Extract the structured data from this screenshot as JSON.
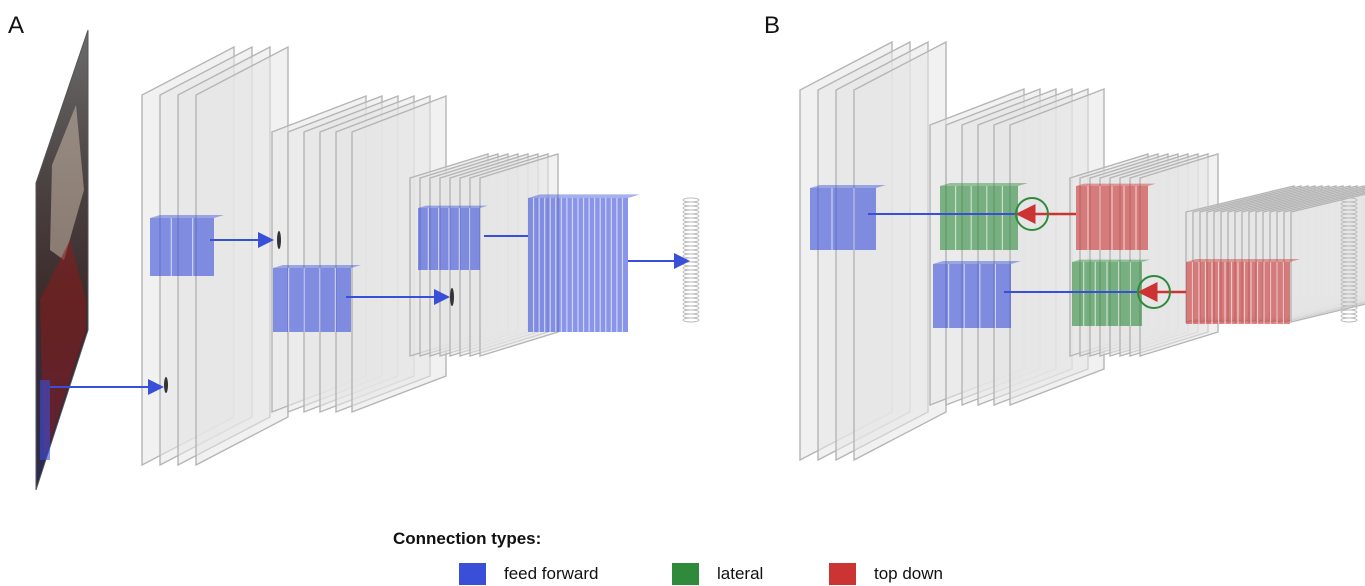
{
  "panels": {
    "a_label": "A",
    "b_label": "B"
  },
  "legend": {
    "title": "Connection types:",
    "items": [
      {
        "label": "feed forward",
        "color": "#3a4fd8"
      },
      {
        "label": "lateral",
        "color": "#2f8a3c"
      },
      {
        "label": "top down",
        "color": "#cc3333"
      }
    ]
  },
  "colors": {
    "feed_forward": "#3a4fd8",
    "lateral": "#2f8a3c",
    "top_down": "#cc3333",
    "layer_plane": "#e6e6e6",
    "layer_edge": "#b5b5b5"
  }
}
